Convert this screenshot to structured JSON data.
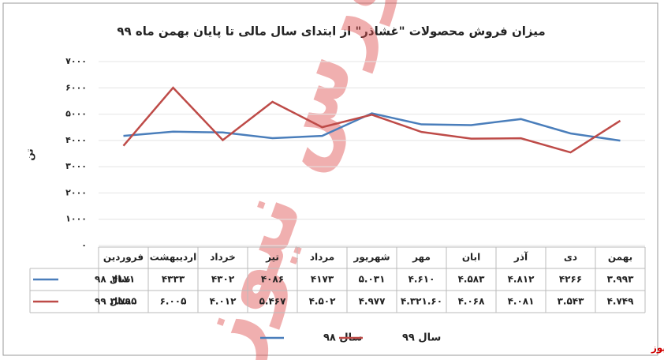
{
  "chart_data": {
    "type": "line",
    "title": "میزان فروش محصولات \"غشاذر\" از ابتدای سال مالی تا پایان بهمن ماه ۹۹",
    "y_label": "تن",
    "watermark": "بورس نیوز",
    "source": "بورس نیوز",
    "categories": [
      "فروردین",
      "اردیبهشت",
      "خرداد",
      "تیر",
      "مرداد",
      "شهریور",
      "مهر",
      "ابان",
      "آذر",
      "دی",
      "بهمن"
    ],
    "series": [
      {
        "name": "سال ۹۸",
        "color": "#4a7ebb",
        "values": [
          4171,
          4333,
          4302,
          4086,
          4173,
          5031,
          4610,
          4583,
          4812,
          4266,
          3993
        ],
        "value_labels": [
          "۴۱۷۱",
          "۴۳۳۳",
          "۴۳۰۲",
          "۴۰۸۶",
          "۴۱۷۳",
          "۵.۰۳۱",
          "۴.۶۱۰",
          "۴.۵۸۳",
          "۴.۸۱۲",
          "۴۲۶۶",
          "۳.۹۹۳"
        ]
      },
      {
        "name": "سال ۹۹",
        "color": "#be4b48",
        "values": [
          3795,
          6005,
          4012,
          5467,
          4502,
          4977,
          4321.6,
          4068,
          4081,
          3543,
          4749
        ],
        "value_labels": [
          "۳.۷۹۵",
          "۶.۰۰۵",
          "۴.۰۱۲",
          "۵.۴۶۷",
          "۴.۵۰۲",
          "۴.۹۷۷",
          "۴.۳۲۱.۶۰",
          "۴.۰۶۸",
          "۴.۰۸۱",
          "۳.۵۴۳",
          "۴.۷۴۹"
        ]
      }
    ],
    "ylim": [
      0,
      7000
    ],
    "yticks": [
      {
        "value": 0,
        "label": "۰"
      },
      {
        "value": 1000,
        "label": "۱۰۰۰"
      },
      {
        "value": 2000,
        "label": "۲۰۰۰"
      },
      {
        "value": 3000,
        "label": "۳۰۰۰"
      },
      {
        "value": 4000,
        "label": "۴۰۰۰"
      },
      {
        "value": 5000,
        "label": "۵۰۰۰"
      },
      {
        "value": 6000,
        "label": "۶۰۰۰"
      },
      {
        "value": 7000,
        "label": "۷۰۰۰"
      }
    ],
    "grid": true
  }
}
